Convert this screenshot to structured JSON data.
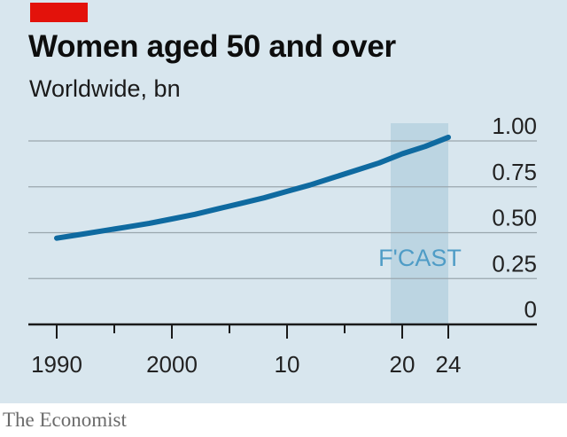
{
  "title": "Women aged 50 and over",
  "subtitle": "Worldwide, bn",
  "source": "The Economist",
  "colors": {
    "background": "#d8e6ee",
    "line": "#0f6aa0",
    "forecast_band": "#bcd5e2",
    "forecast_label": "#4f9cc6",
    "brand_red": "#e3120b",
    "grid": "#9aa6ad"
  },
  "chart_data": {
    "type": "line",
    "title": "Women aged 50 and over",
    "subtitle": "Worldwide, bn",
    "xlabel": "",
    "ylabel": "",
    "xlim": [
      1990,
      2024
    ],
    "ylim": [
      0,
      1.0
    ],
    "x_ticks": [
      1990,
      2000,
      2010,
      2020,
      2024
    ],
    "x_tick_labels": [
      "1990",
      "2000",
      "10",
      "20",
      "24"
    ],
    "y_ticks": [
      0,
      0.25,
      0.5,
      0.75,
      1.0
    ],
    "y_tick_labels": [
      "0",
      "0.25",
      "0.50",
      "0.75",
      "1.00"
    ],
    "y_axis_position": "right",
    "grid": true,
    "forecast": {
      "label": "F'CAST",
      "start": 2019,
      "end": 2024
    },
    "series": [
      {
        "x": [
          1990,
          1992,
          1994,
          1996,
          1998,
          2000,
          2002,
          2004,
          2006,
          2008,
          2010,
          2012,
          2014,
          2016,
          2018,
          2020,
          2022,
          2024
        ],
        "values": [
          0.47,
          0.49,
          0.51,
          0.53,
          0.55,
          0.575,
          0.6,
          0.63,
          0.66,
          0.69,
          0.725,
          0.76,
          0.8,
          0.84,
          0.88,
          0.93,
          0.97,
          1.02
        ]
      }
    ]
  }
}
